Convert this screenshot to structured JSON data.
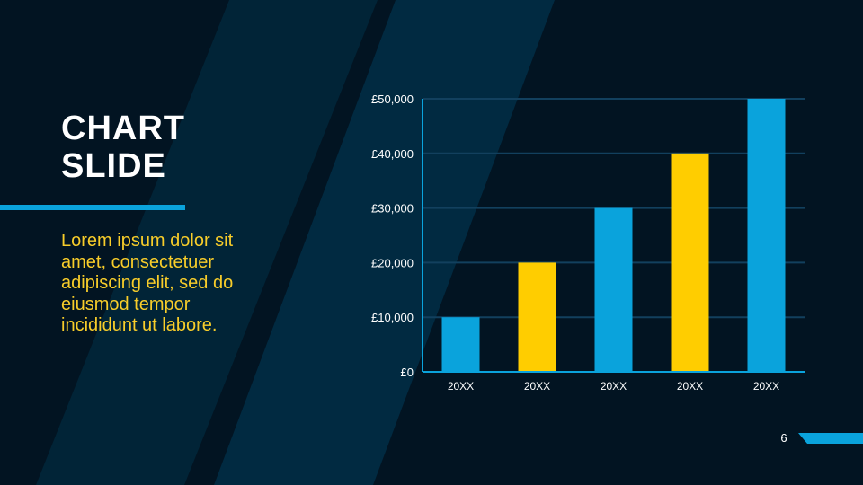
{
  "slide": {
    "title": "CHART\nSLIDE",
    "body": "Lorem ipsum dolor sit amet, consectetuer adipiscing elit, sed do eiusmod tempor incididunt ut labore.",
    "page_number": "6"
  },
  "colors": {
    "background": "#021422",
    "stripe": "#002a42",
    "accent": "#0aa3dc",
    "highlight": "#ffcd00",
    "body_text": "#f8cd2a"
  },
  "chart_data": {
    "type": "bar",
    "categories": [
      "20XX",
      "20XX",
      "20XX",
      "20XX",
      "20XX"
    ],
    "values": [
      10000,
      20000,
      30000,
      40000,
      50000
    ],
    "bar_colors": [
      "#0aa3dc",
      "#ffcd00",
      "#0aa3dc",
      "#ffcd00",
      "#0aa3dc"
    ],
    "ylim": [
      0,
      50000
    ],
    "yticks": [
      "£0",
      "£10,000",
      "£20,000",
      "£30,000",
      "£40,000",
      "£50,000"
    ],
    "grid": true,
    "title": "",
    "xlabel": "",
    "ylabel": ""
  }
}
